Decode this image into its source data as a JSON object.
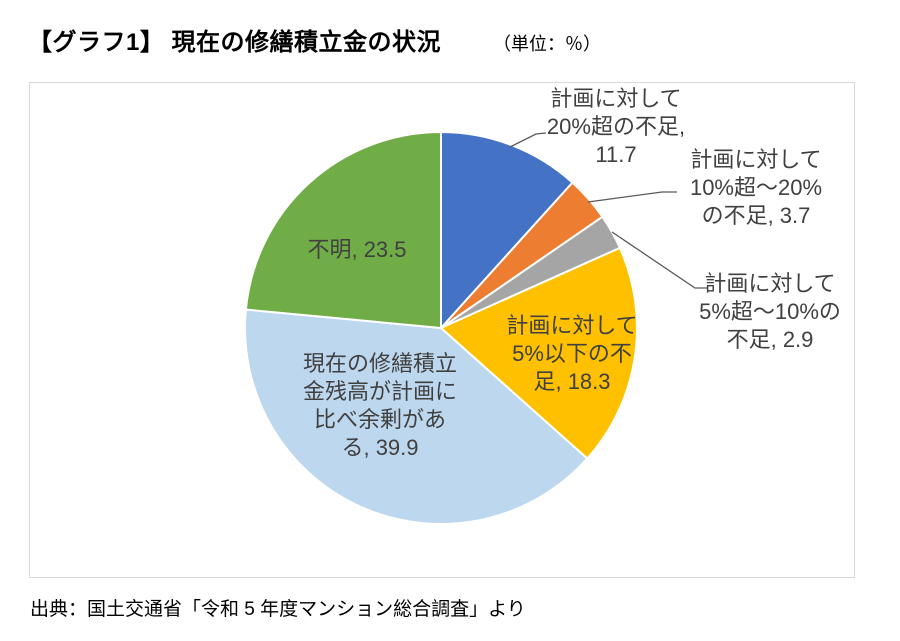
{
  "header": {
    "title": "【グラフ1】 現在の修繕積立金の状況",
    "unit_note": "（単位：％）"
  },
  "footer": {
    "source": "出典：国土交通省「令和 5 年度マンション総合調査」より"
  },
  "colors": {
    "label_text": "#404040",
    "leader_line": "#595959",
    "chart_border": "#d9d9d9",
    "background": "#ffffff"
  },
  "chart_data": {
    "type": "pie",
    "title": "【グラフ1】 現在の修繕積立金の状況",
    "unit": "％",
    "direction": "clockwise",
    "start_angle_deg": 0,
    "legend": "none",
    "source": "出典：国土交通省「令和 5 年度マンション総合調査」より",
    "slices": [
      {
        "label": "計画に対して20%超の不足",
        "value": 11.7,
        "color": "#4472C4",
        "label_placement": "outside",
        "label_lines": [
          "計画に対して",
          "20%超の不足,",
          "11.7"
        ]
      },
      {
        "label": "計画に対して10%超～20%の不足",
        "value": 3.7,
        "color": "#ED7D31",
        "label_placement": "outside",
        "label_lines": [
          "計画に対して",
          "10%超～20%",
          "の不足, 3.7"
        ]
      },
      {
        "label": "計画に対して5%超～10%の不足",
        "value": 2.9,
        "color": "#A5A5A5",
        "label_placement": "outside",
        "label_lines": [
          "計画に対して",
          "5%超～10%の",
          "不足, 2.9"
        ]
      },
      {
        "label": "計画に対して5%以下の不足",
        "value": 18.3,
        "color": "#FFC000",
        "label_placement": "inside",
        "label_lines": [
          "計画に対して",
          "5%以下の不",
          "足, 18.3"
        ]
      },
      {
        "label": "現在の修繕積立金残高が計画に比べ余剰がある",
        "value": 39.9,
        "color": "#BDD7EE",
        "label_placement": "inside",
        "label_lines": [
          "現在の修繕積立",
          "金残高が計画に",
          "比べ余剰があ",
          "る, 39.9"
        ]
      },
      {
        "label": "不明",
        "value": 23.5,
        "color": "#70AD47",
        "label_placement": "inside",
        "label_lines": [
          "不明, 23.5"
        ]
      }
    ]
  }
}
